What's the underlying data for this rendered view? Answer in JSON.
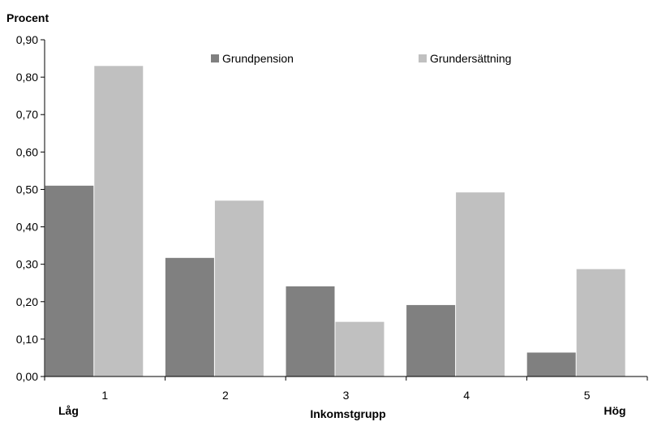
{
  "chart_data": {
    "type": "bar",
    "ylabel": "Procent",
    "xlabel": "Inkomstgrupp",
    "x_annotations": {
      "left": "Låg",
      "right": "Hög"
    },
    "categories": [
      "1",
      "2",
      "3",
      "4",
      "5"
    ],
    "ylim": [
      0,
      0.9
    ],
    "yticks": [
      "0,00",
      "0,10",
      "0,20",
      "0,30",
      "0,40",
      "0,50",
      "0,60",
      "0,70",
      "0,80",
      "0,90"
    ],
    "grid": false,
    "legend_position": "top",
    "series": [
      {
        "name": "Grundpension",
        "color": "#808080",
        "values": [
          0.51,
          0.317,
          0.241,
          0.191,
          0.064
        ]
      },
      {
        "name": "Grundersättning",
        "color": "#c0c0c0",
        "values": [
          0.83,
          0.47,
          0.146,
          0.492,
          0.287
        ]
      }
    ]
  }
}
